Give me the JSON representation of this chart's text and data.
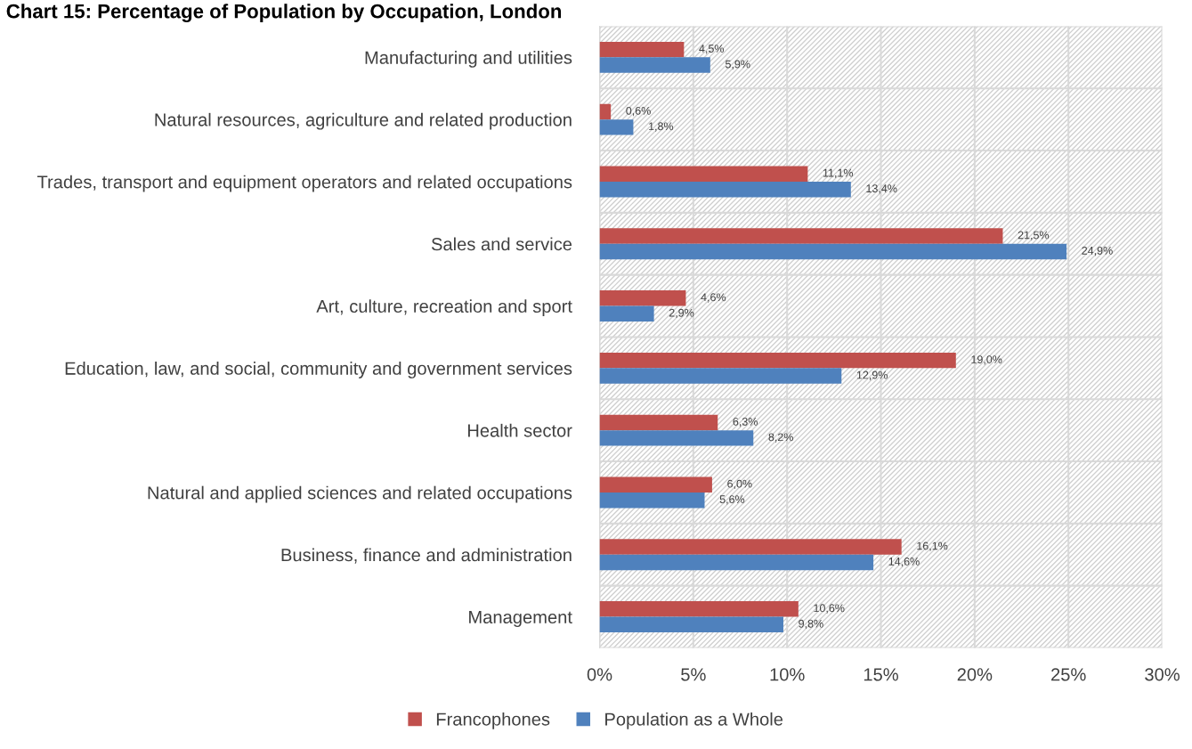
{
  "chart_data": {
    "type": "bar",
    "orientation": "horizontal",
    "title": "Chart 15: Percentage of Population by Occupation, London",
    "categories": [
      "Manufacturing and utilities",
      "Natural resources, agriculture and related production",
      "Trades, transport and equipment operators and related occupations",
      "Sales and service",
      "Art, culture, recreation and sport",
      "Education, law, and social, community and government services",
      "Health sector",
      "Natural and applied sciences and related occupations",
      "Business, finance and administration",
      "Management"
    ],
    "series": [
      {
        "name": "Francophones",
        "color": "#c0504d",
        "values": [
          4.5,
          0.6,
          11.1,
          21.5,
          4.6,
          19.0,
          6.3,
          6.0,
          16.1,
          10.6
        ],
        "value_labels": [
          "4,5%",
          "0,6%",
          "11,1%",
          "21,5%",
          "4,6%",
          "19,0%",
          "6,3%",
          "6,0%",
          "16,1%",
          "10,6%"
        ]
      },
      {
        "name": "Population as a Whole",
        "color": "#4f81bd",
        "values": [
          5.9,
          1.8,
          13.4,
          24.9,
          2.9,
          12.9,
          8.2,
          5.6,
          14.6,
          9.8
        ],
        "value_labels": [
          "5,9%",
          "1,8%",
          "13,4%",
          "24,9%",
          "2,9%",
          "12,9%",
          "8,2%",
          "5,6%",
          "14,6%",
          "9,8%"
        ]
      }
    ],
    "xlim": [
      0,
      30
    ],
    "xticks": [
      {
        "value": 0,
        "label": "0%"
      },
      {
        "value": 5,
        "label": "5%"
      },
      {
        "value": 10,
        "label": "10%"
      },
      {
        "value": 15,
        "label": "15%"
      },
      {
        "value": 20,
        "label": "20%"
      },
      {
        "value": 25,
        "label": "25%"
      },
      {
        "value": 30,
        "label": "30%"
      }
    ],
    "grid": true,
    "legend": "bottom"
  }
}
